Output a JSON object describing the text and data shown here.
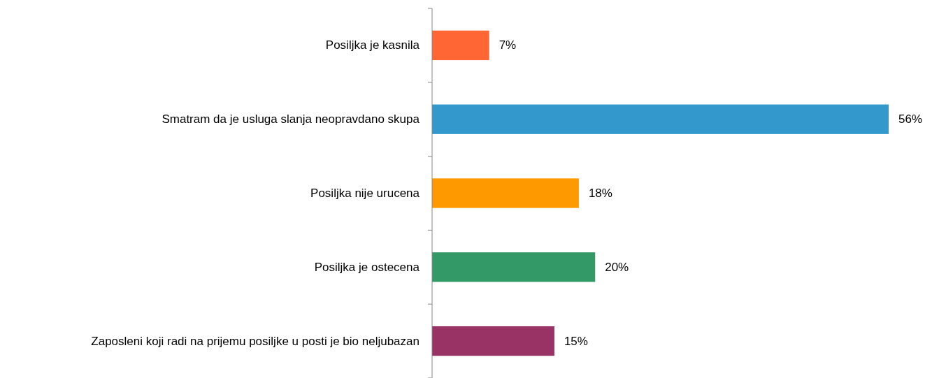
{
  "chart_data": {
    "type": "bar",
    "orientation": "horizontal",
    "categories": [
      "Posiljka je kasnila",
      "Smatram da je usluga slanja neopravdano skupa",
      "Posiljka nije urucena",
      "Posiljka je ostecena",
      "Zaposleni koji radi na prijemu posiljke u posti je bio neljubazan"
    ],
    "values": [
      7,
      56,
      18,
      20,
      15
    ],
    "colors": [
      "#ff6633",
      "#3399cc",
      "#ff9900",
      "#339966",
      "#993366"
    ],
    "value_labels": [
      "7%",
      "56%",
      "18%",
      "20%",
      "15%"
    ]
  }
}
